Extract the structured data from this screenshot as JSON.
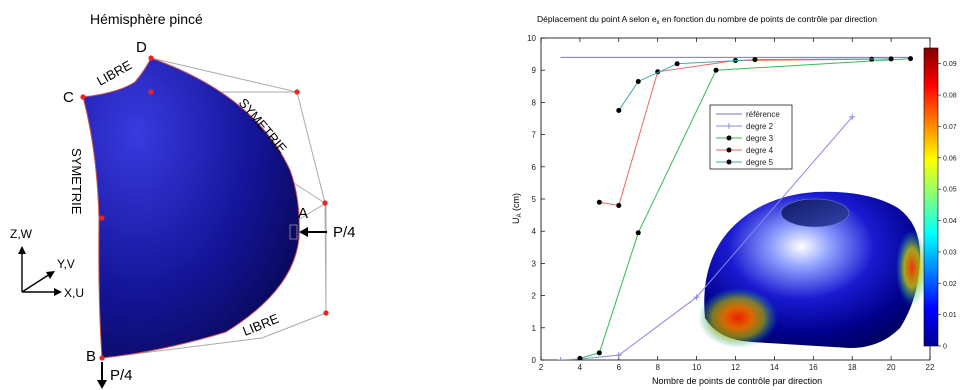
{
  "left_figure": {
    "title": "Hémisphère pincé",
    "vertex_labels": {
      "A": "A",
      "B": "B",
      "C": "C",
      "D": "D"
    },
    "edge_labels": {
      "top_free": "LIBRE",
      "right_sym": "SYMETRIE",
      "left_sym": "SYMETRIE",
      "bottom_free": "LIBRE"
    },
    "loads": {
      "at_A": "P/4",
      "at_B": "P/4"
    },
    "axes": {
      "z": "Z,W",
      "y": "Y,V",
      "x": "X,U"
    },
    "colors": {
      "shell": "#10107a",
      "control_net": "#aaaaaa",
      "control_point": "#ee2222"
    }
  },
  "chart_data": {
    "type": "line",
    "title_main": "Déplacement du point A selon e",
    "title_sub": "x",
    "title_rest": " en fonction du nombre de points de contrôle par direction",
    "xlabel": "Nombre de points de contrôle par direction",
    "ylabel_main": "U",
    "ylabel_sub": "A",
    "ylabel_unit": " (cm)",
    "xlim": [
      2,
      22
    ],
    "ylim": [
      0,
      10
    ],
    "xticks": [
      2,
      4,
      6,
      8,
      10,
      12,
      14,
      16,
      18,
      20,
      22
    ],
    "yticks": [
      0,
      1,
      2,
      3,
      4,
      5,
      6,
      7,
      8,
      9,
      10
    ],
    "grid": false,
    "legend_position": "upper-middle",
    "series": [
      {
        "name": "référence",
        "color": "#7a7ab0",
        "marker": "none",
        "x": [
          3,
          21
        ],
        "y": [
          9.4,
          9.4
        ]
      },
      {
        "name": "degre 2",
        "color": "#8888ee",
        "marker": "plus",
        "x": [
          3,
          4,
          6,
          10,
          18
        ],
        "y": [
          0.0,
          0.03,
          0.15,
          1.95,
          7.55
        ]
      },
      {
        "name": "degre 3",
        "color": "#33bb55",
        "marker": "dot",
        "x": [
          4,
          5,
          7,
          11,
          21
        ],
        "y": [
          0.05,
          0.22,
          3.95,
          9.0,
          9.36
        ]
      },
      {
        "name": "degre 4",
        "color": "#ee6666",
        "marker": "dot",
        "x": [
          5,
          6,
          8,
          12,
          19
        ],
        "y": [
          4.9,
          4.8,
          8.95,
          9.3,
          9.34
        ]
      },
      {
        "name": "degre 5",
        "color": "#44aaaa",
        "marker": "dot",
        "x": [
          6,
          7,
          9,
          13,
          20
        ],
        "y": [
          7.75,
          8.65,
          9.2,
          9.33,
          9.35
        ]
      }
    ],
    "colorbar": {
      "min": 0,
      "max": 0.095,
      "ticks": [
        "0",
        "0.01",
        "0.02",
        "0.03",
        "0.04",
        "0.05",
        "0.06",
        "0.07",
        "0.08",
        "0.09"
      ]
    }
  }
}
